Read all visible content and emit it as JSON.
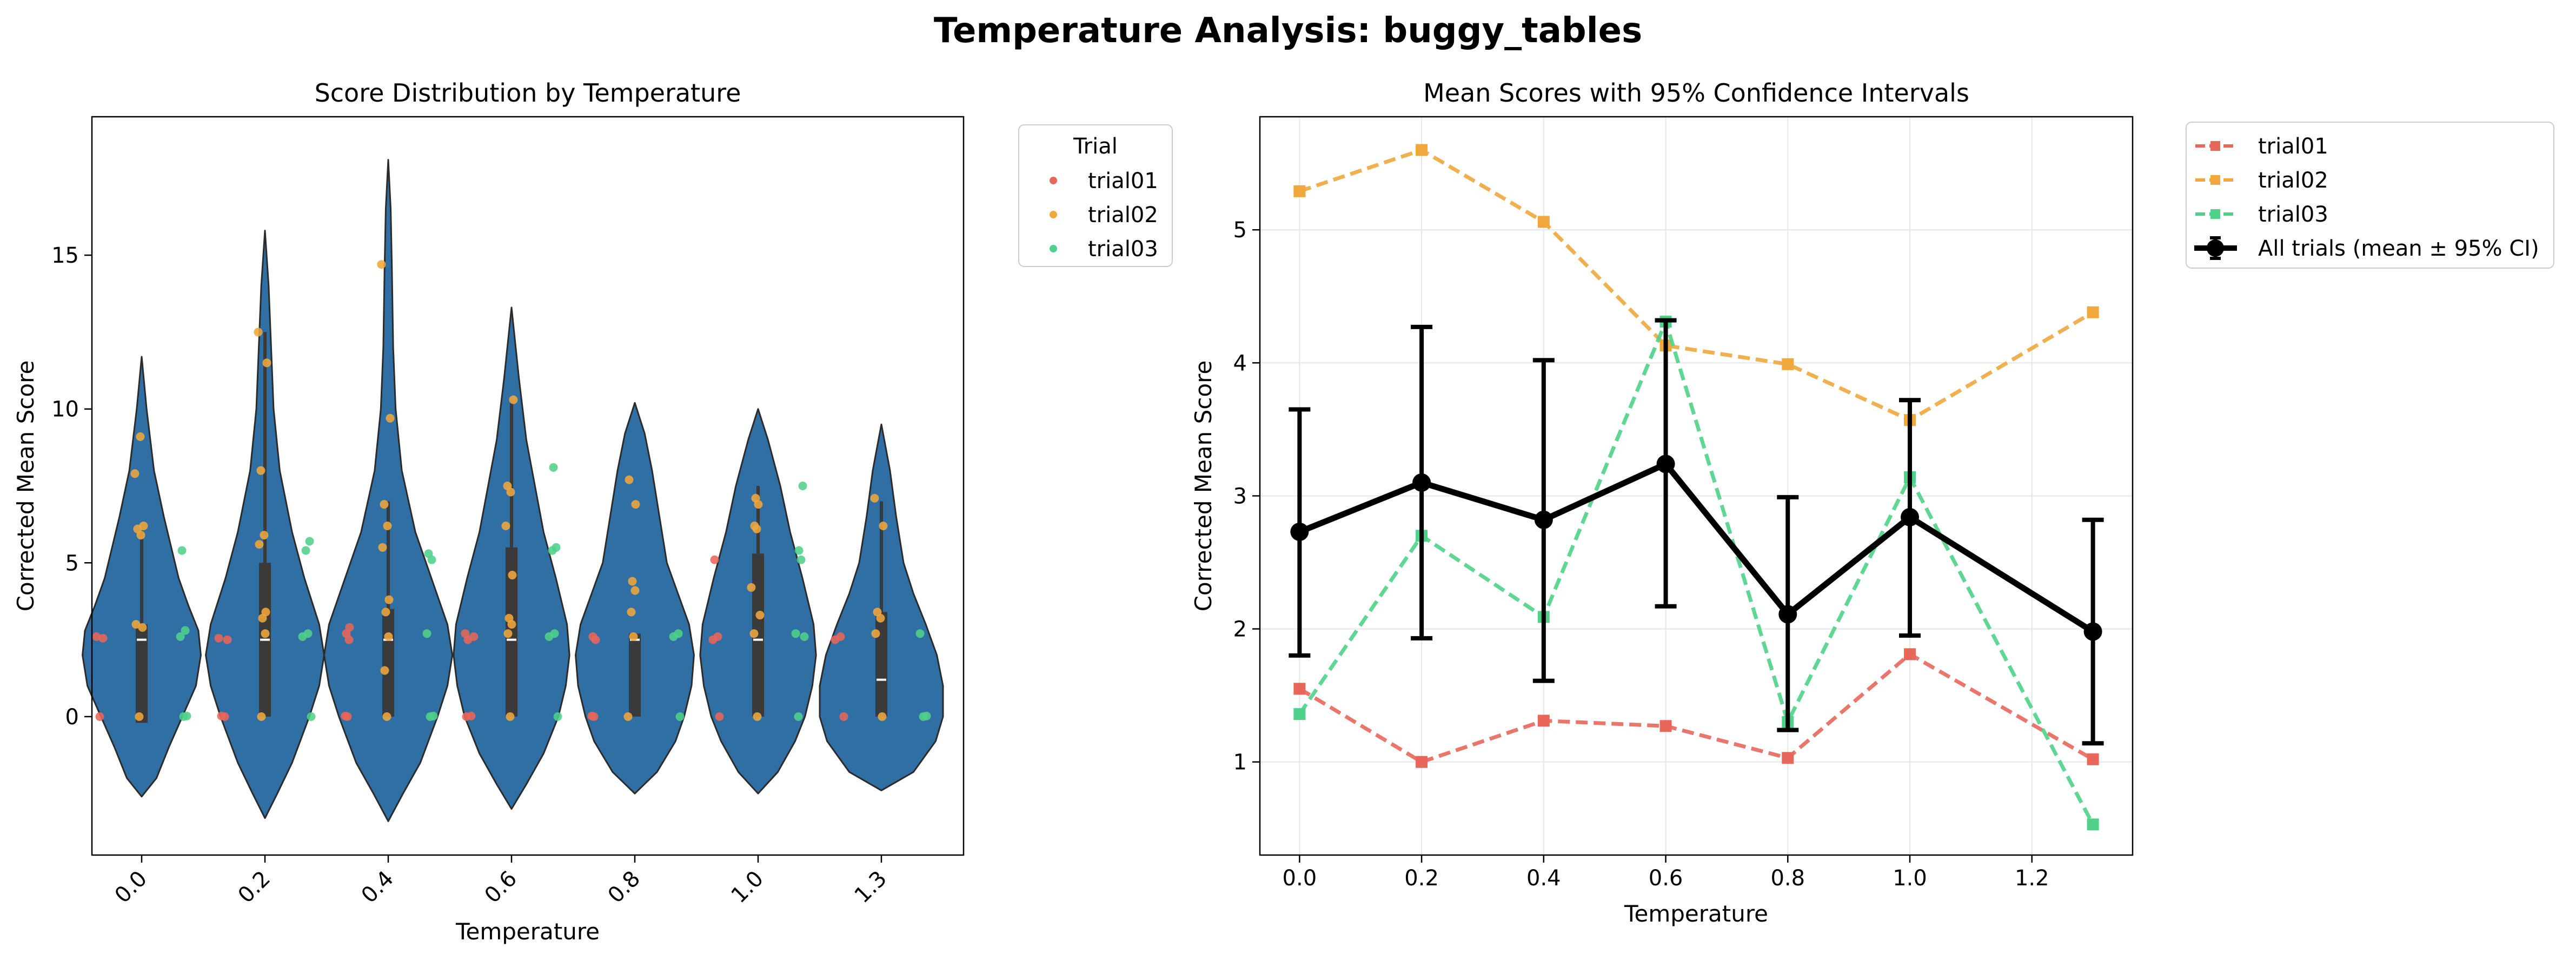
{
  "figure": {
    "title": "Temperature Analysis: buggy_tables"
  },
  "colors": {
    "trial01": "#e8665a",
    "trial02": "#f0a73c",
    "trial03": "#4fd18a",
    "violin": "#2f6fa3",
    "violin_edge": "#2b2b2b",
    "box": "#3a3a3a",
    "overall": "#000000",
    "grid": "#e6e6e6"
  },
  "chart_data": [
    {
      "type": "violin",
      "title": "Score Distribution by Temperature",
      "xlabel": "Temperature",
      "ylabel": "Corrected Mean Score",
      "ylim": [
        -4.5,
        19.5
      ],
      "yticks": [
        0,
        5,
        10,
        15
      ],
      "categories": [
        "0.0",
        "0.2",
        "0.4",
        "0.6",
        "0.8",
        "1.0",
        "1.3"
      ],
      "legend": {
        "title": "Trial",
        "position": "outside-right",
        "entries": [
          "trial01",
          "trial02",
          "trial03"
        ]
      },
      "violins": [
        {
          "category": "0.0",
          "min": -2.6,
          "max": 11.7,
          "q1": -0.2,
          "median": 2.5,
          "q3": 3.0,
          "whisker_high": 6.0,
          "profile": [
            [
              -2.6,
              0.0
            ],
            [
              -2.0,
              0.12
            ],
            [
              -1.0,
              0.22
            ],
            [
              0.0,
              0.33
            ],
            [
              1.0,
              0.44
            ],
            [
              2.0,
              0.48
            ],
            [
              2.8,
              0.46
            ],
            [
              3.6,
              0.38
            ],
            [
              4.5,
              0.3
            ],
            [
              5.5,
              0.24
            ],
            [
              6.5,
              0.18
            ],
            [
              8.0,
              0.1
            ],
            [
              10.0,
              0.04
            ],
            [
              11.7,
              0.0
            ]
          ]
        },
        {
          "category": "0.2",
          "min": -3.3,
          "max": 15.8,
          "q1": 0.0,
          "median": 2.5,
          "q3": 5.0,
          "whisker_high": 12.5,
          "profile": [
            [
              -3.3,
              0.0
            ],
            [
              -2.5,
              0.1
            ],
            [
              -1.5,
              0.22
            ],
            [
              0.0,
              0.36
            ],
            [
              1.0,
              0.44
            ],
            [
              2.0,
              0.48
            ],
            [
              3.0,
              0.44
            ],
            [
              4.5,
              0.32
            ],
            [
              6.0,
              0.22
            ],
            [
              8.0,
              0.12
            ],
            [
              10.0,
              0.07
            ],
            [
              12.0,
              0.05
            ],
            [
              14.0,
              0.03
            ],
            [
              15.8,
              0.0
            ]
          ]
        },
        {
          "category": "0.4",
          "min": -3.4,
          "max": 18.1,
          "q1": 0.0,
          "median": 2.5,
          "q3": 3.5,
          "whisker_high": 7.0,
          "profile": [
            [
              -3.4,
              0.0
            ],
            [
              -2.5,
              0.12
            ],
            [
              -1.5,
              0.26
            ],
            [
              0.0,
              0.4
            ],
            [
              1.0,
              0.48
            ],
            [
              2.0,
              0.52
            ],
            [
              3.0,
              0.48
            ],
            [
              4.5,
              0.35
            ],
            [
              6.0,
              0.22
            ],
            [
              8.0,
              0.11
            ],
            [
              10.0,
              0.06
            ],
            [
              12.0,
              0.04
            ],
            [
              14.5,
              0.03
            ],
            [
              16.5,
              0.02
            ],
            [
              18.1,
              0.0
            ]
          ]
        },
        {
          "category": "0.6",
          "min": -3.0,
          "max": 13.3,
          "q1": 0.0,
          "median": 2.5,
          "q3": 5.5,
          "whisker_high": 10.3,
          "profile": [
            [
              -3.0,
              0.0
            ],
            [
              -2.2,
              0.12
            ],
            [
              -1.2,
              0.26
            ],
            [
              0.0,
              0.38
            ],
            [
              1.0,
              0.44
            ],
            [
              2.0,
              0.47
            ],
            [
              3.0,
              0.45
            ],
            [
              4.5,
              0.36
            ],
            [
              6.0,
              0.26
            ],
            [
              7.5,
              0.19
            ],
            [
              9.0,
              0.12
            ],
            [
              11.0,
              0.06
            ],
            [
              13.3,
              0.0
            ]
          ]
        },
        {
          "category": "0.8",
          "min": -2.5,
          "max": 10.2,
          "q1": 0.0,
          "median": 2.5,
          "q3": 2.7,
          "whisker_high": 2.7,
          "profile": [
            [
              -2.5,
              0.0
            ],
            [
              -1.8,
              0.18
            ],
            [
              -0.8,
              0.33
            ],
            [
              0.0,
              0.4
            ],
            [
              1.0,
              0.46
            ],
            [
              2.0,
              0.48
            ],
            [
              3.0,
              0.44
            ],
            [
              4.0,
              0.35
            ],
            [
              5.0,
              0.26
            ],
            [
              6.5,
              0.2
            ],
            [
              8.0,
              0.14
            ],
            [
              9.2,
              0.08
            ],
            [
              10.2,
              0.0
            ]
          ]
        },
        {
          "category": "1.0",
          "min": -2.5,
          "max": 10.0,
          "q1": 0.0,
          "median": 2.5,
          "q3": 5.3,
          "whisker_high": 7.5,
          "profile": [
            [
              -2.5,
              0.0
            ],
            [
              -1.8,
              0.16
            ],
            [
              -0.8,
              0.3
            ],
            [
              0.0,
              0.38
            ],
            [
              1.0,
              0.44
            ],
            [
              2.0,
              0.47
            ],
            [
              3.0,
              0.45
            ],
            [
              4.5,
              0.36
            ],
            [
              6.0,
              0.26
            ],
            [
              7.5,
              0.18
            ],
            [
              9.0,
              0.08
            ],
            [
              10.0,
              0.0
            ]
          ]
        },
        {
          "category": "1.3",
          "min": -2.4,
          "max": 9.5,
          "q1": 0.0,
          "median": 1.2,
          "q3": 3.4,
          "whisker_high": 7.0,
          "profile": [
            [
              -2.4,
              0.0
            ],
            [
              -1.8,
              0.26
            ],
            [
              -0.8,
              0.44
            ],
            [
              0.0,
              0.5
            ],
            [
              1.0,
              0.5
            ],
            [
              2.0,
              0.45
            ],
            [
              3.0,
              0.36
            ],
            [
              4.0,
              0.26
            ],
            [
              5.0,
              0.18
            ],
            [
              6.5,
              0.12
            ],
            [
              8.0,
              0.07
            ],
            [
              9.5,
              0.0
            ]
          ]
        }
      ],
      "points": {
        "trial01": [
          [
            0,
            0.0
          ],
          [
            0,
            2.55
          ],
          [
            0,
            2.6
          ],
          [
            1,
            0.0
          ],
          [
            1,
            0.02
          ],
          [
            1,
            2.5
          ],
          [
            1,
            2.55
          ],
          [
            2,
            0.0
          ],
          [
            2,
            0.02
          ],
          [
            2,
            2.5
          ],
          [
            2,
            2.7
          ],
          [
            2,
            2.9
          ],
          [
            3,
            0.0
          ],
          [
            3,
            0.02
          ],
          [
            3,
            2.5
          ],
          [
            3,
            2.6
          ],
          [
            3,
            2.7
          ],
          [
            4,
            0.0
          ],
          [
            4,
            0.02
          ],
          [
            4,
            2.5
          ],
          [
            4,
            2.6
          ],
          [
            5,
            0.0
          ],
          [
            5,
            2.5
          ],
          [
            5,
            2.6
          ],
          [
            5,
            5.1
          ],
          [
            6,
            0.0
          ],
          [
            6,
            2.5
          ],
          [
            6,
            2.6
          ]
        ],
        "trial02": [
          [
            0,
            0.0
          ],
          [
            0,
            2.9
          ],
          [
            0,
            3.0
          ],
          [
            0,
            5.9
          ],
          [
            0,
            6.1
          ],
          [
            0,
            6.2
          ],
          [
            0,
            7.9
          ],
          [
            0,
            9.1
          ],
          [
            1,
            0.0
          ],
          [
            1,
            2.7
          ],
          [
            1,
            3.2
          ],
          [
            1,
            3.4
          ],
          [
            1,
            5.6
          ],
          [
            1,
            5.9
          ],
          [
            1,
            8.0
          ],
          [
            1,
            11.5
          ],
          [
            1,
            12.5
          ],
          [
            2,
            0.0
          ],
          [
            2,
            1.5
          ],
          [
            2,
            2.6
          ],
          [
            2,
            3.4
          ],
          [
            2,
            3.8
          ],
          [
            2,
            5.5
          ],
          [
            2,
            6.2
          ],
          [
            2,
            6.9
          ],
          [
            2,
            9.7
          ],
          [
            2,
            14.7
          ],
          [
            3,
            0.0
          ],
          [
            3,
            2.7
          ],
          [
            3,
            3.0
          ],
          [
            3,
            3.2
          ],
          [
            3,
            4.6
          ],
          [
            3,
            6.2
          ],
          [
            3,
            7.3
          ],
          [
            3,
            7.5
          ],
          [
            3,
            10.3
          ],
          [
            4,
            0.0
          ],
          [
            4,
            2.6
          ],
          [
            4,
            3.4
          ],
          [
            4,
            4.1
          ],
          [
            4,
            4.4
          ],
          [
            4,
            6.9
          ],
          [
            4,
            7.7
          ],
          [
            5,
            0.0
          ],
          [
            5,
            2.7
          ],
          [
            5,
            3.3
          ],
          [
            5,
            4.2
          ],
          [
            5,
            6.1
          ],
          [
            5,
            6.2
          ],
          [
            5,
            6.9
          ],
          [
            5,
            7.1
          ],
          [
            6,
            0.0
          ],
          [
            6,
            2.7
          ],
          [
            6,
            3.2
          ],
          [
            6,
            3.4
          ],
          [
            6,
            6.2
          ],
          [
            6,
            7.1
          ]
        ],
        "trial03": [
          [
            0,
            0.0
          ],
          [
            0,
            0.02
          ],
          [
            0,
            2.6
          ],
          [
            0,
            2.8
          ],
          [
            0,
            5.4
          ],
          [
            1,
            0.0
          ],
          [
            1,
            2.6
          ],
          [
            1,
            2.7
          ],
          [
            1,
            5.4
          ],
          [
            1,
            5.7
          ],
          [
            2,
            0.0
          ],
          [
            2,
            0.02
          ],
          [
            2,
            2.7
          ],
          [
            2,
            5.1
          ],
          [
            2,
            5.3
          ],
          [
            3,
            0.0
          ],
          [
            3,
            2.6
          ],
          [
            3,
            2.7
          ],
          [
            3,
            5.4
          ],
          [
            3,
            5.5
          ],
          [
            3,
            8.1
          ],
          [
            4,
            0.0
          ],
          [
            4,
            2.6
          ],
          [
            4,
            2.7
          ],
          [
            5,
            0.0
          ],
          [
            5,
            2.6
          ],
          [
            5,
            2.7
          ],
          [
            5,
            5.1
          ],
          [
            5,
            5.4
          ],
          [
            5,
            7.5
          ],
          [
            6,
            0.0
          ],
          [
            6,
            0.02
          ],
          [
            6,
            2.7
          ]
        ]
      }
    },
    {
      "type": "line",
      "title": "Mean Scores with 95% Confidence Intervals",
      "xlabel": "Temperature",
      "ylabel": "Corrected Mean Score",
      "xlim": [
        -0.065,
        1.365
      ],
      "ylim": [
        0.3,
        5.85
      ],
      "xticks": [
        "0.0",
        "0.2",
        "0.4",
        "0.6",
        "0.8",
        "1.0",
        "1.2"
      ],
      "yticks": [
        "1",
        "2",
        "3",
        "4",
        "5"
      ],
      "grid": true,
      "legend": {
        "position": "outside-right",
        "entries": [
          "trial01",
          "trial02",
          "trial03",
          "All trials (mean ± 95% CI)"
        ]
      },
      "x": [
        0.0,
        0.2,
        0.4,
        0.6,
        0.8,
        1.0,
        1.3
      ],
      "series": [
        {
          "name": "trial01",
          "values": [
            1.55,
            1.0,
            1.31,
            1.27,
            1.03,
            1.81,
            1.02
          ]
        },
        {
          "name": "trial02",
          "values": [
            5.29,
            5.6,
            5.06,
            4.13,
            3.99,
            3.57,
            4.38
          ]
        },
        {
          "name": "trial03",
          "values": [
            1.36,
            2.7,
            2.09,
            4.31,
            1.3,
            3.14,
            0.53
          ]
        }
      ],
      "overall": {
        "name": "All trials (mean ± 95% CI)",
        "values": [
          2.73,
          3.1,
          2.82,
          3.24,
          2.11,
          2.84,
          1.98
        ],
        "ci_low": [
          1.8,
          1.93,
          1.61,
          2.17,
          1.24,
          1.95,
          1.14
        ],
        "ci_high": [
          3.65,
          4.27,
          4.02,
          4.32,
          2.99,
          3.72,
          2.82
        ]
      }
    }
  ]
}
